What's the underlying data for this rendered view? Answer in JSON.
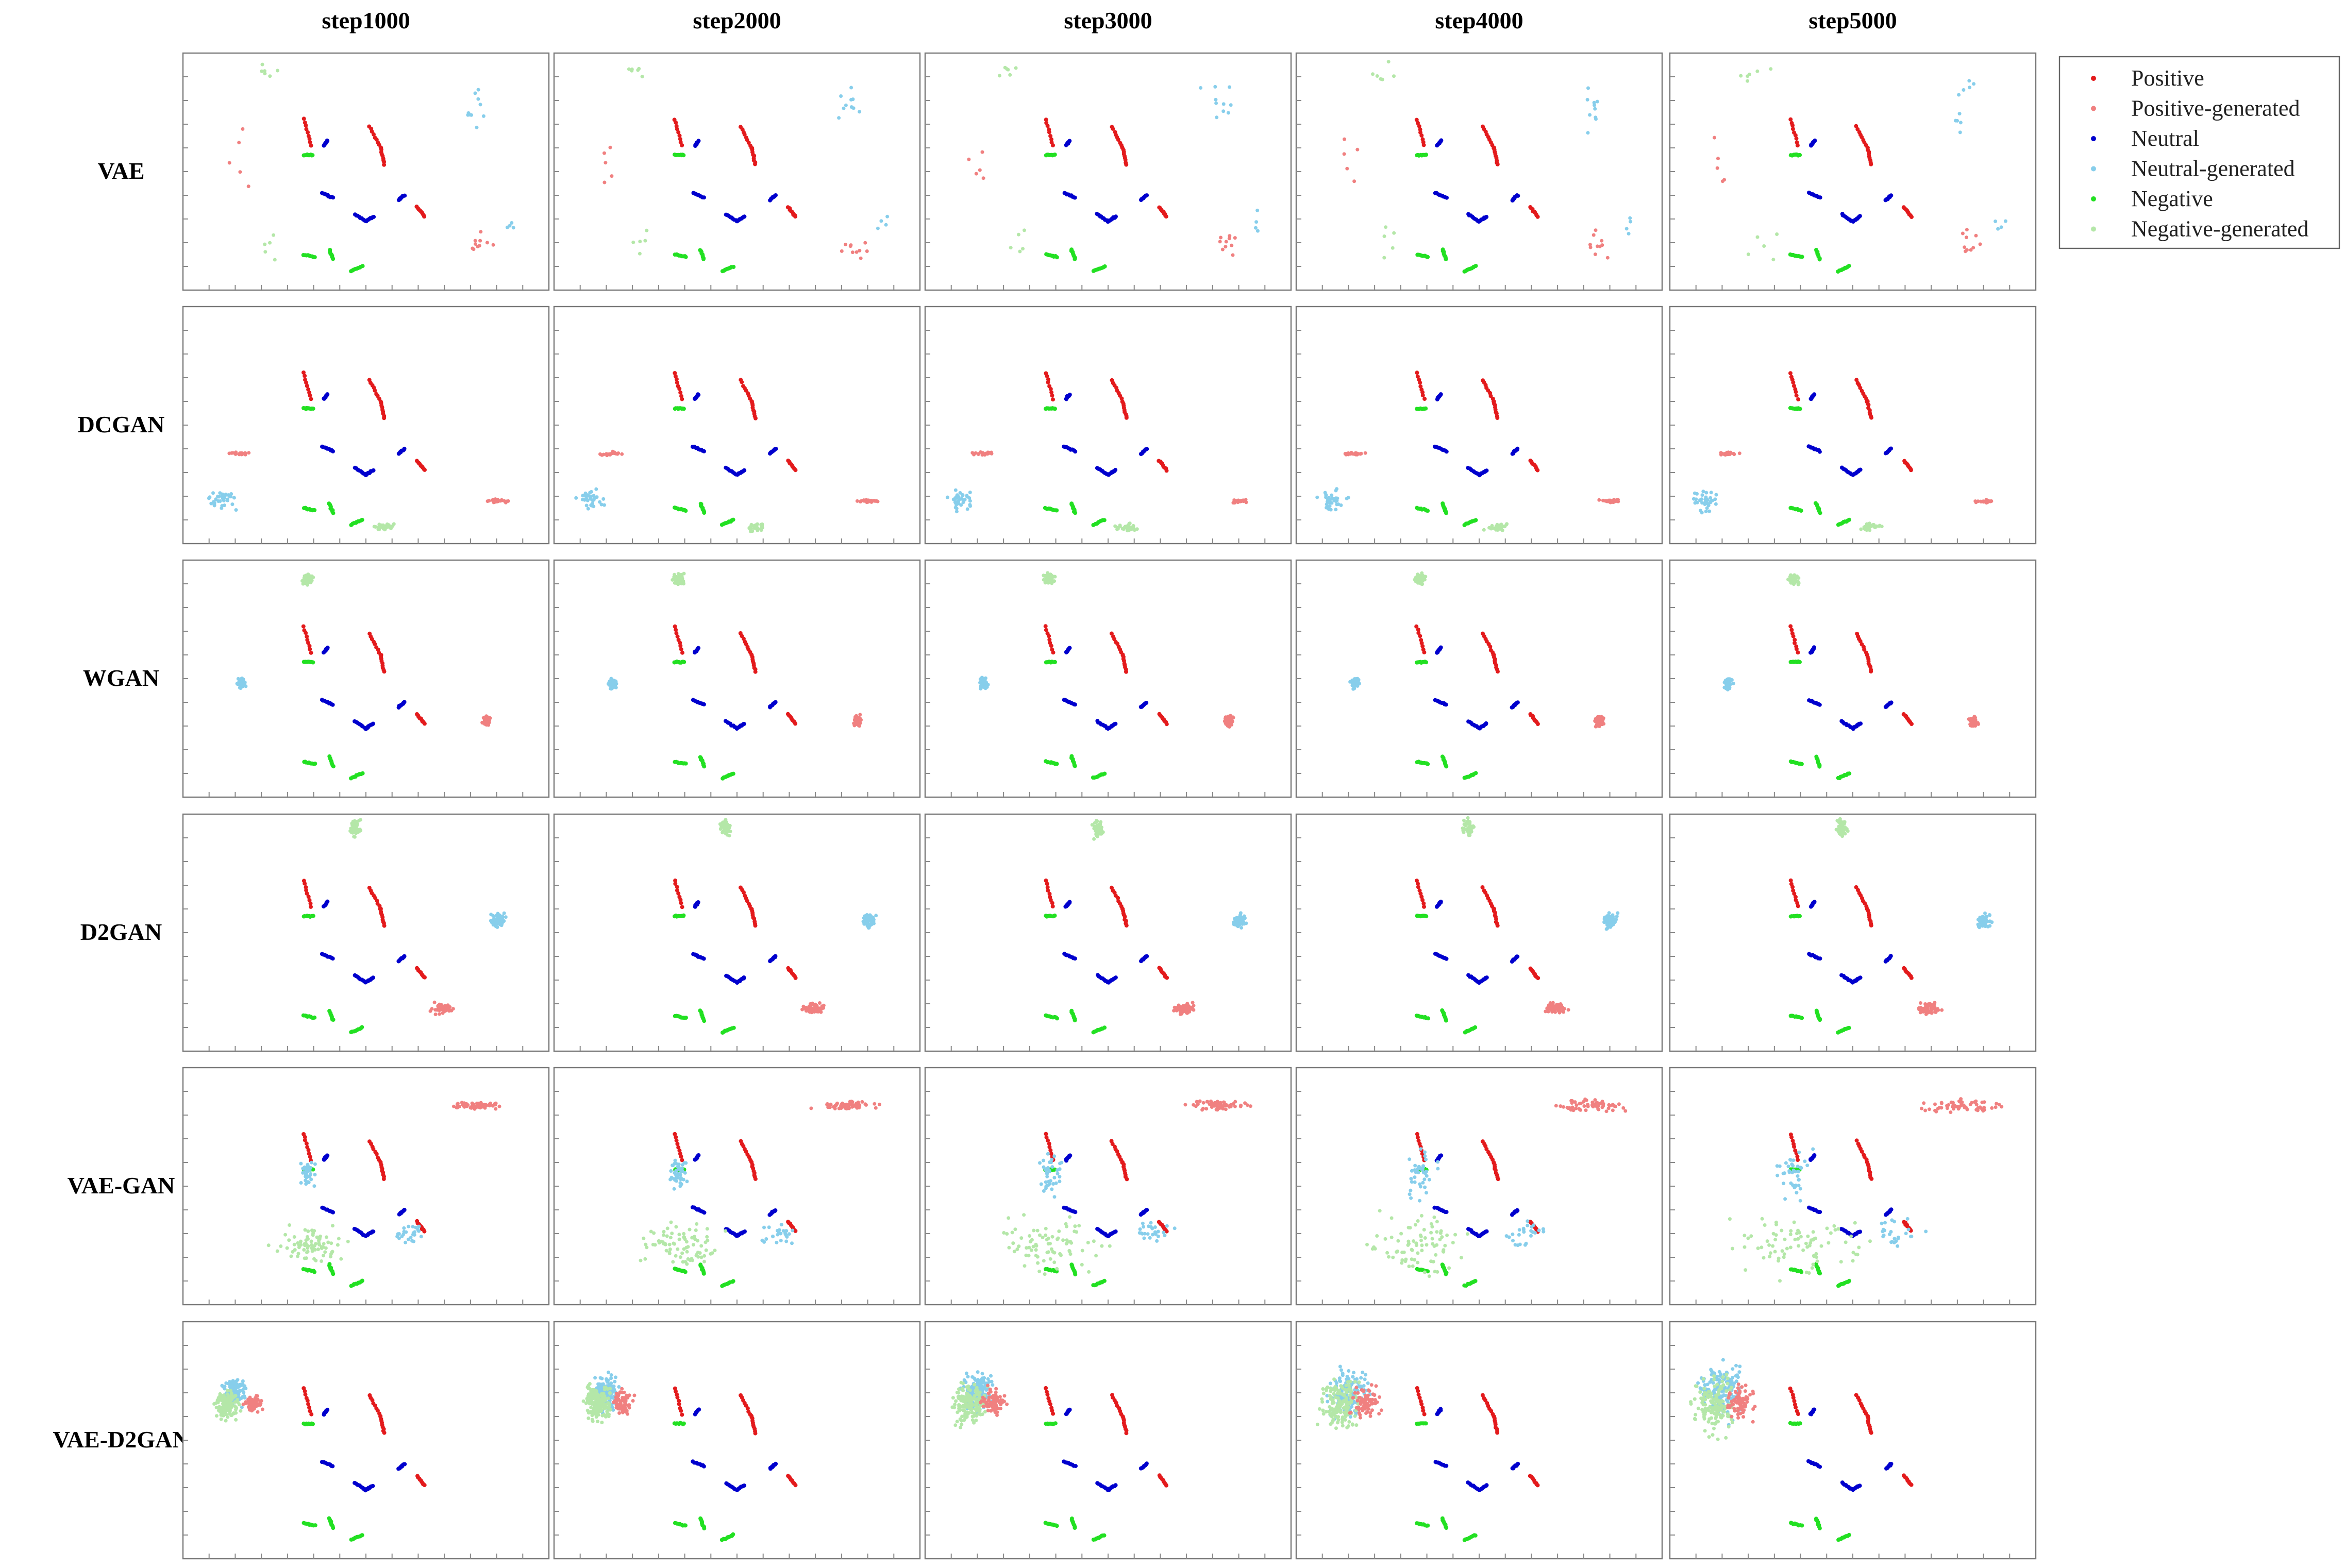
{
  "chart_data": {
    "type": "scatter",
    "columns": [
      "step1000",
      "step2000",
      "step3000",
      "step4000",
      "step5000"
    ],
    "rows": [
      "VAE",
      "DCGAN",
      "WGAN",
      "D2GAN",
      "VAE-GAN",
      "VAE-D2GAN"
    ],
    "legend": {
      "placement": "top-right",
      "entries": [
        {
          "label": "Positive",
          "color": "#e31a1c"
        },
        {
          "label": "Positive-generated",
          "color": "#f08080"
        },
        {
          "label": "Neutral",
          "color": "#0000cd"
        },
        {
          "label": "Neutral-generated",
          "color": "#87ceeb"
        },
        {
          "label": "Negative",
          "color": "#22e022"
        },
        {
          "label": "Negative-generated",
          "color": "#b4e7a8"
        }
      ]
    },
    "real_clusters": {
      "Positive": [
        {
          "pts": [
            [
              0.33,
              0.28
            ],
            [
              0.35,
              0.39
            ]
          ]
        },
        {
          "pts": [
            [
              0.51,
              0.31
            ],
            [
              0.54,
              0.4
            ],
            [
              0.55,
              0.47
            ]
          ]
        },
        {
          "pts": [
            [
              0.64,
              0.65
            ],
            [
              0.66,
              0.69
            ]
          ]
        }
      ],
      "Neutral": [
        {
          "pts": [
            [
              0.385,
              0.39
            ],
            [
              0.395,
              0.37
            ]
          ]
        },
        {
          "pts": [
            [
              0.38,
              0.59
            ],
            [
              0.41,
              0.61
            ]
          ]
        },
        {
          "pts": [
            [
              0.47,
              0.68
            ],
            [
              0.5,
              0.71
            ],
            [
              0.52,
              0.69
            ]
          ]
        },
        {
          "pts": [
            [
              0.59,
              0.62
            ],
            [
              0.605,
              0.6
            ]
          ]
        }
      ],
      "Negative": [
        {
          "pts": [
            [
              0.33,
              0.43
            ],
            [
              0.355,
              0.43
            ]
          ]
        },
        {
          "pts": [
            [
              0.33,
              0.85
            ],
            [
              0.36,
              0.86
            ]
          ]
        },
        {
          "pts": [
            [
              0.4,
              0.83
            ],
            [
              0.41,
              0.87
            ]
          ]
        },
        {
          "pts": [
            [
              0.46,
              0.92
            ],
            [
              0.49,
              0.9
            ]
          ]
        }
      ]
    },
    "generated": {
      "VAE": [
        {
          "class": "Negative-generated",
          "cx": 0.23,
          "cy": 0.08,
          "sx": 0.06,
          "sy": 0.05,
          "n": 6
        },
        {
          "class": "Positive-generated",
          "cx": 0.15,
          "cy": 0.45,
          "sx": 0.05,
          "sy": 0.2,
          "n": 5
        },
        {
          "class": "Neutral-generated",
          "cx": 0.8,
          "cy": 0.22,
          "sx": 0.06,
          "sy": 0.15,
          "n": 10
        },
        {
          "class": "Positive-generated",
          "cx": 0.82,
          "cy": 0.8,
          "sx": 0.06,
          "sy": 0.08,
          "n": 10
        },
        {
          "class": "Negative-generated",
          "cx": 0.25,
          "cy": 0.8,
          "sx": 0.05,
          "sy": 0.12,
          "n": 5
        },
        {
          "class": "Neutral-generated",
          "cx": 0.9,
          "cy": 0.72,
          "sx": 0.03,
          "sy": 0.1,
          "n": 4
        }
      ],
      "DCGAN": [
        {
          "class": "Positive-generated",
          "cx": 0.16,
          "cy": 0.62,
          "sx": 0.04,
          "sy": 0.01,
          "n": 20
        },
        {
          "class": "Neutral-generated",
          "cx": 0.1,
          "cy": 0.82,
          "sx": 0.05,
          "sy": 0.06,
          "n": 35
        },
        {
          "class": "Negative-generated",
          "cx": 0.55,
          "cy": 0.93,
          "sx": 0.04,
          "sy": 0.02,
          "n": 30
        },
        {
          "class": "Positive-generated",
          "cx": 0.86,
          "cy": 0.82,
          "sx": 0.04,
          "sy": 0.01,
          "n": 25
        }
      ],
      "WGAN": [
        {
          "class": "Negative-generated",
          "cx": 0.34,
          "cy": 0.08,
          "sx": 0.02,
          "sy": 0.03,
          "n": 60
        },
        {
          "class": "Neutral-generated",
          "cx": 0.16,
          "cy": 0.52,
          "sx": 0.015,
          "sy": 0.03,
          "n": 60
        },
        {
          "class": "Positive-generated",
          "cx": 0.83,
          "cy": 0.68,
          "sx": 0.015,
          "sy": 0.03,
          "n": 60
        }
      ],
      "D2GAN": [
        {
          "class": "Negative-generated",
          "cx": 0.47,
          "cy": 0.06,
          "sx": 0.02,
          "sy": 0.05,
          "n": 50
        },
        {
          "class": "Neutral-generated",
          "cx": 0.86,
          "cy": 0.45,
          "sx": 0.025,
          "sy": 0.04,
          "n": 60
        },
        {
          "class": "Positive-generated",
          "cx": 0.71,
          "cy": 0.82,
          "sx": 0.04,
          "sy": 0.03,
          "n": 60
        }
      ],
      "VAE-GAN": [
        {
          "class": "Positive-generated",
          "cx": 0.8,
          "cy": 0.16,
          "sx": 0.08,
          "sy": 0.02,
          "n": 60
        },
        {
          "class": "Neutral-generated",
          "cx": 0.34,
          "cy": 0.45,
          "sx": 0.03,
          "sy": 0.08,
          "n": 40
        },
        {
          "class": "Negative-generated",
          "cx": 0.35,
          "cy": 0.75,
          "sx": 0.12,
          "sy": 0.1,
          "n": 80
        },
        {
          "class": "Neutral-generated",
          "cx": 0.62,
          "cy": 0.7,
          "sx": 0.05,
          "sy": 0.05,
          "n": 25
        }
      ],
      "VAE-D2GAN": [
        {
          "class": "Neutral-generated",
          "cx": 0.14,
          "cy": 0.3,
          "sx": 0.04,
          "sy": 0.08,
          "n": 150
        },
        {
          "class": "Negative-generated",
          "cx": 0.12,
          "cy": 0.35,
          "sx": 0.04,
          "sy": 0.08,
          "n": 150
        },
        {
          "class": "Positive-generated",
          "cx": 0.19,
          "cy": 0.34,
          "sx": 0.03,
          "sy": 0.05,
          "n": 80
        }
      ]
    },
    "grid": false
  }
}
